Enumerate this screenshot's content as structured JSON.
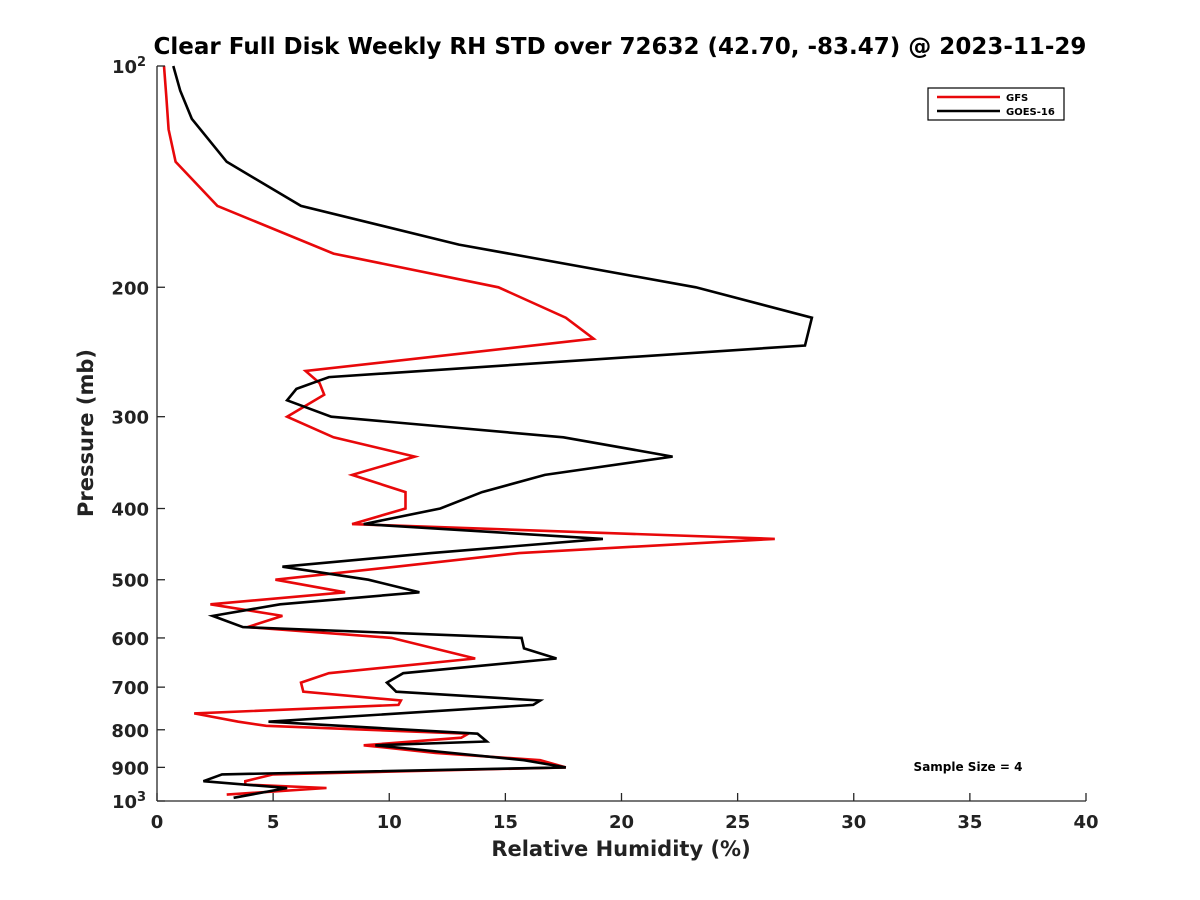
{
  "chart_data": {
    "type": "line",
    "title": "Clear Full Disk Weekly RH STD over 72632 (42.70, -83.47) @ 2023-11-29",
    "xlabel": "Relative Humidity (%)",
    "ylabel": "Pressure (mb)",
    "xlim": [
      0,
      40
    ],
    "ylim": [
      100,
      1000
    ],
    "y_scale": "log",
    "y_reversed": true,
    "x_ticks": [
      "0",
      "5",
      "10",
      "15",
      "20",
      "25",
      "30",
      "35",
      "40"
    ],
    "y_ticks": [
      {
        "value": 100,
        "label": "10",
        "sup": "2"
      },
      {
        "value": 200,
        "label": "200"
      },
      {
        "value": 300,
        "label": "300"
      },
      {
        "value": 400,
        "label": "400"
      },
      {
        "value": 500,
        "label": "500"
      },
      {
        "value": 600,
        "label": "600"
      },
      {
        "value": 700,
        "label": "700"
      },
      {
        "value": 800,
        "label": "800"
      },
      {
        "value": 900,
        "label": "900"
      },
      {
        "value": 1000,
        "label": "10",
        "sup": "3"
      }
    ],
    "grid": false,
    "legend_position": "top-right",
    "annotation": "Sample Size = 4",
    "series": [
      {
        "name": "GFS",
        "color": "#e8080a",
        "points": [
          [
            0.3,
            100
          ],
          [
            0.4,
            110
          ],
          [
            0.5,
            122
          ],
          [
            0.8,
            135
          ],
          [
            2.6,
            155
          ],
          [
            7.6,
            180
          ],
          [
            14.7,
            200
          ],
          [
            17.6,
            220
          ],
          [
            18.8,
            235
          ],
          [
            6.4,
            260
          ],
          [
            7.0,
            270
          ],
          [
            7.2,
            280
          ],
          [
            5.6,
            300
          ],
          [
            7.6,
            320
          ],
          [
            11.1,
            340
          ],
          [
            8.4,
            360
          ],
          [
            10.7,
            380
          ],
          [
            10.7,
            400
          ],
          [
            8.4,
            420
          ],
          [
            26.6,
            440
          ],
          [
            15.6,
            460
          ],
          [
            10.3,
            480
          ],
          [
            5.1,
            500
          ],
          [
            8.1,
            520
          ],
          [
            2.3,
            540
          ],
          [
            5.4,
            560
          ],
          [
            3.9,
            580
          ],
          [
            10.1,
            600
          ],
          [
            13.7,
            640
          ],
          [
            7.4,
            670
          ],
          [
            6.2,
            690
          ],
          [
            6.3,
            710
          ],
          [
            10.5,
            730
          ],
          [
            10.4,
            740
          ],
          [
            1.6,
            760
          ],
          [
            3.5,
            780
          ],
          [
            4.7,
            790
          ],
          [
            13.4,
            810
          ],
          [
            13.1,
            820
          ],
          [
            8.9,
            840
          ],
          [
            12.0,
            860
          ],
          [
            16.5,
            880
          ],
          [
            17.6,
            900
          ],
          [
            5.0,
            920
          ],
          [
            3.8,
            940
          ],
          [
            3.8,
            950
          ],
          [
            7.3,
            960
          ],
          [
            3.0,
            980
          ]
        ]
      },
      {
        "name": "GOES-16",
        "color": "#000000",
        "points": [
          [
            0.7,
            100
          ],
          [
            1.0,
            108
          ],
          [
            1.5,
            118
          ],
          [
            3.0,
            135
          ],
          [
            6.2,
            155
          ],
          [
            13.0,
            175
          ],
          [
            23.2,
            200
          ],
          [
            28.2,
            220
          ],
          [
            27.9,
            240
          ],
          [
            7.4,
            265
          ],
          [
            6.0,
            275
          ],
          [
            5.6,
            285
          ],
          [
            7.5,
            300
          ],
          [
            17.5,
            320
          ],
          [
            22.2,
            340
          ],
          [
            16.7,
            360
          ],
          [
            14.0,
            380
          ],
          [
            12.2,
            400
          ],
          [
            8.9,
            420
          ],
          [
            19.2,
            440
          ],
          [
            11.8,
            460
          ],
          [
            5.4,
            480
          ],
          [
            9.1,
            500
          ],
          [
            11.3,
            520
          ],
          [
            5.3,
            540
          ],
          [
            2.4,
            560
          ],
          [
            3.7,
            580
          ],
          [
            15.7,
            600
          ],
          [
            15.8,
            620
          ],
          [
            17.2,
            640
          ],
          [
            10.6,
            670
          ],
          [
            9.9,
            690
          ],
          [
            10.3,
            710
          ],
          [
            16.5,
            730
          ],
          [
            16.2,
            740
          ],
          [
            4.8,
            780
          ],
          [
            13.8,
            810
          ],
          [
            14.2,
            830
          ],
          [
            9.4,
            840
          ],
          [
            15.8,
            880
          ],
          [
            17.6,
            900
          ],
          [
            2.8,
            920
          ],
          [
            2.0,
            940
          ],
          [
            5.6,
            960
          ],
          [
            3.3,
            990
          ]
        ]
      }
    ]
  }
}
